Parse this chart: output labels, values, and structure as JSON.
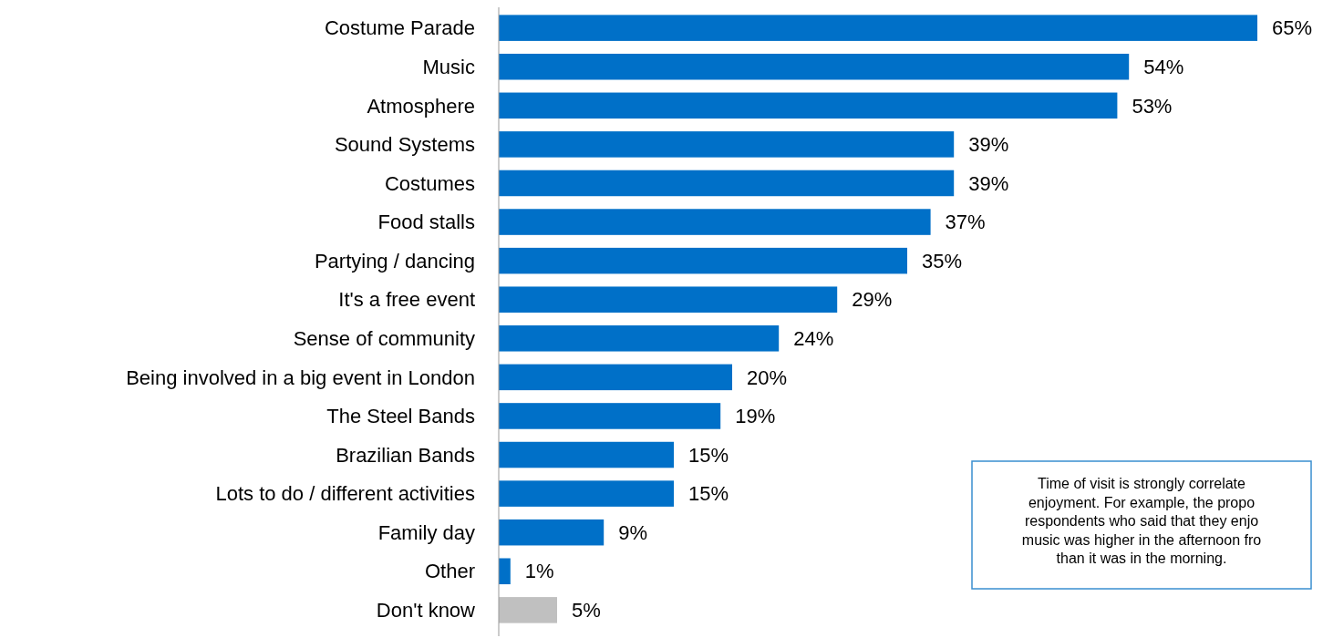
{
  "chart_data": {
    "type": "bar",
    "orientation": "horizontal",
    "categories": [
      "Costume Parade",
      "Music",
      "Atmosphere",
      "Sound Systems",
      "Costumes",
      "Food stalls",
      "Partying / dancing",
      "It's a free event",
      "Sense of community",
      "Being involved in a big event in London",
      "The Steel Bands",
      "Brazilian Bands",
      "Lots to do / different activities",
      "Family day",
      "Other",
      "Don't know"
    ],
    "values": [
      65,
      54,
      53,
      39,
      39,
      37,
      35,
      29,
      24,
      20,
      19,
      15,
      15,
      9,
      1,
      5
    ],
    "colors": [
      "#0070c8",
      "#0070c8",
      "#0070c8",
      "#0070c8",
      "#0070c8",
      "#0070c8",
      "#0070c8",
      "#0070c8",
      "#0070c8",
      "#0070c8",
      "#0070c8",
      "#0070c8",
      "#0070c8",
      "#0070c8",
      "#0070c8",
      "#c0c0c0"
    ],
    "value_labels": [
      "65%",
      "54%",
      "53%",
      "39%",
      "39%",
      "37%",
      "35%",
      "29%",
      "24%",
      "20%",
      "19%",
      "15%",
      "15%",
      "9%",
      "1%",
      "5%"
    ],
    "xlim": [
      0,
      65
    ],
    "tick_labels": "y",
    "annotations": [
      "Time of visit is strongly correlate\nenjoyment. For example, the propo\nrespondents who said that they enjo\nmusic was higher in the afternoon fro\nthan it was in the morning."
    ]
  }
}
